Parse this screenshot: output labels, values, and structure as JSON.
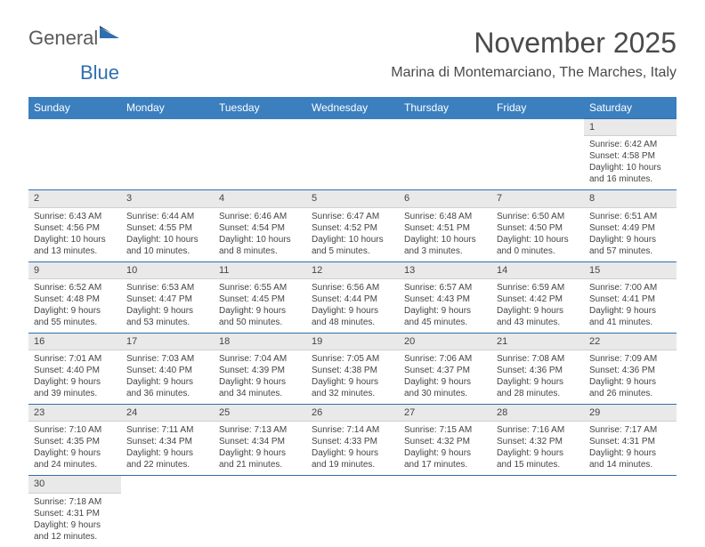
{
  "logo": {
    "text1": "General",
    "text2": "Blue"
  },
  "title": "November 2025",
  "location": "Marina di Montemarciano, The Marches, Italy",
  "weekdays": [
    "Sunday",
    "Monday",
    "Tuesday",
    "Wednesday",
    "Thursday",
    "Friday",
    "Saturday"
  ],
  "colors": {
    "header_bg": "#3b7fbf",
    "header_text": "#ffffff",
    "daynum_bg": "#e9e9e9",
    "border_top": "#2f6fb0",
    "logo_gray": "#5a5a5a",
    "logo_blue": "#2f6fb0"
  },
  "weeks": [
    [
      {
        "empty": true
      },
      {
        "empty": true
      },
      {
        "empty": true
      },
      {
        "empty": true
      },
      {
        "empty": true
      },
      {
        "empty": true
      },
      {
        "day": "1",
        "sunrise": "Sunrise: 6:42 AM",
        "sunset": "Sunset: 4:58 PM",
        "daylight1": "Daylight: 10 hours",
        "daylight2": "and 16 minutes."
      }
    ],
    [
      {
        "day": "2",
        "sunrise": "Sunrise: 6:43 AM",
        "sunset": "Sunset: 4:56 PM",
        "daylight1": "Daylight: 10 hours",
        "daylight2": "and 13 minutes."
      },
      {
        "day": "3",
        "sunrise": "Sunrise: 6:44 AM",
        "sunset": "Sunset: 4:55 PM",
        "daylight1": "Daylight: 10 hours",
        "daylight2": "and 10 minutes."
      },
      {
        "day": "4",
        "sunrise": "Sunrise: 6:46 AM",
        "sunset": "Sunset: 4:54 PM",
        "daylight1": "Daylight: 10 hours",
        "daylight2": "and 8 minutes."
      },
      {
        "day": "5",
        "sunrise": "Sunrise: 6:47 AM",
        "sunset": "Sunset: 4:52 PM",
        "daylight1": "Daylight: 10 hours",
        "daylight2": "and 5 minutes."
      },
      {
        "day": "6",
        "sunrise": "Sunrise: 6:48 AM",
        "sunset": "Sunset: 4:51 PM",
        "daylight1": "Daylight: 10 hours",
        "daylight2": "and 3 minutes."
      },
      {
        "day": "7",
        "sunrise": "Sunrise: 6:50 AM",
        "sunset": "Sunset: 4:50 PM",
        "daylight1": "Daylight: 10 hours",
        "daylight2": "and 0 minutes."
      },
      {
        "day": "8",
        "sunrise": "Sunrise: 6:51 AM",
        "sunset": "Sunset: 4:49 PM",
        "daylight1": "Daylight: 9 hours",
        "daylight2": "and 57 minutes."
      }
    ],
    [
      {
        "day": "9",
        "sunrise": "Sunrise: 6:52 AM",
        "sunset": "Sunset: 4:48 PM",
        "daylight1": "Daylight: 9 hours",
        "daylight2": "and 55 minutes."
      },
      {
        "day": "10",
        "sunrise": "Sunrise: 6:53 AM",
        "sunset": "Sunset: 4:47 PM",
        "daylight1": "Daylight: 9 hours",
        "daylight2": "and 53 minutes."
      },
      {
        "day": "11",
        "sunrise": "Sunrise: 6:55 AM",
        "sunset": "Sunset: 4:45 PM",
        "daylight1": "Daylight: 9 hours",
        "daylight2": "and 50 minutes."
      },
      {
        "day": "12",
        "sunrise": "Sunrise: 6:56 AM",
        "sunset": "Sunset: 4:44 PM",
        "daylight1": "Daylight: 9 hours",
        "daylight2": "and 48 minutes."
      },
      {
        "day": "13",
        "sunrise": "Sunrise: 6:57 AM",
        "sunset": "Sunset: 4:43 PM",
        "daylight1": "Daylight: 9 hours",
        "daylight2": "and 45 minutes."
      },
      {
        "day": "14",
        "sunrise": "Sunrise: 6:59 AM",
        "sunset": "Sunset: 4:42 PM",
        "daylight1": "Daylight: 9 hours",
        "daylight2": "and 43 minutes."
      },
      {
        "day": "15",
        "sunrise": "Sunrise: 7:00 AM",
        "sunset": "Sunset: 4:41 PM",
        "daylight1": "Daylight: 9 hours",
        "daylight2": "and 41 minutes."
      }
    ],
    [
      {
        "day": "16",
        "sunrise": "Sunrise: 7:01 AM",
        "sunset": "Sunset: 4:40 PM",
        "daylight1": "Daylight: 9 hours",
        "daylight2": "and 39 minutes."
      },
      {
        "day": "17",
        "sunrise": "Sunrise: 7:03 AM",
        "sunset": "Sunset: 4:40 PM",
        "daylight1": "Daylight: 9 hours",
        "daylight2": "and 36 minutes."
      },
      {
        "day": "18",
        "sunrise": "Sunrise: 7:04 AM",
        "sunset": "Sunset: 4:39 PM",
        "daylight1": "Daylight: 9 hours",
        "daylight2": "and 34 minutes."
      },
      {
        "day": "19",
        "sunrise": "Sunrise: 7:05 AM",
        "sunset": "Sunset: 4:38 PM",
        "daylight1": "Daylight: 9 hours",
        "daylight2": "and 32 minutes."
      },
      {
        "day": "20",
        "sunrise": "Sunrise: 7:06 AM",
        "sunset": "Sunset: 4:37 PM",
        "daylight1": "Daylight: 9 hours",
        "daylight2": "and 30 minutes."
      },
      {
        "day": "21",
        "sunrise": "Sunrise: 7:08 AM",
        "sunset": "Sunset: 4:36 PM",
        "daylight1": "Daylight: 9 hours",
        "daylight2": "and 28 minutes."
      },
      {
        "day": "22",
        "sunrise": "Sunrise: 7:09 AM",
        "sunset": "Sunset: 4:36 PM",
        "daylight1": "Daylight: 9 hours",
        "daylight2": "and 26 minutes."
      }
    ],
    [
      {
        "day": "23",
        "sunrise": "Sunrise: 7:10 AM",
        "sunset": "Sunset: 4:35 PM",
        "daylight1": "Daylight: 9 hours",
        "daylight2": "and 24 minutes."
      },
      {
        "day": "24",
        "sunrise": "Sunrise: 7:11 AM",
        "sunset": "Sunset: 4:34 PM",
        "daylight1": "Daylight: 9 hours",
        "daylight2": "and 22 minutes."
      },
      {
        "day": "25",
        "sunrise": "Sunrise: 7:13 AM",
        "sunset": "Sunset: 4:34 PM",
        "daylight1": "Daylight: 9 hours",
        "daylight2": "and 21 minutes."
      },
      {
        "day": "26",
        "sunrise": "Sunrise: 7:14 AM",
        "sunset": "Sunset: 4:33 PM",
        "daylight1": "Daylight: 9 hours",
        "daylight2": "and 19 minutes."
      },
      {
        "day": "27",
        "sunrise": "Sunrise: 7:15 AM",
        "sunset": "Sunset: 4:32 PM",
        "daylight1": "Daylight: 9 hours",
        "daylight2": "and 17 minutes."
      },
      {
        "day": "28",
        "sunrise": "Sunrise: 7:16 AM",
        "sunset": "Sunset: 4:32 PM",
        "daylight1": "Daylight: 9 hours",
        "daylight2": "and 15 minutes."
      },
      {
        "day": "29",
        "sunrise": "Sunrise: 7:17 AM",
        "sunset": "Sunset: 4:31 PM",
        "daylight1": "Daylight: 9 hours",
        "daylight2": "and 14 minutes."
      }
    ],
    [
      {
        "day": "30",
        "sunrise": "Sunrise: 7:18 AM",
        "sunset": "Sunset: 4:31 PM",
        "daylight1": "Daylight: 9 hours",
        "daylight2": "and 12 minutes."
      },
      {
        "empty": true
      },
      {
        "empty": true
      },
      {
        "empty": true
      },
      {
        "empty": true
      },
      {
        "empty": true
      },
      {
        "empty": true
      }
    ]
  ]
}
